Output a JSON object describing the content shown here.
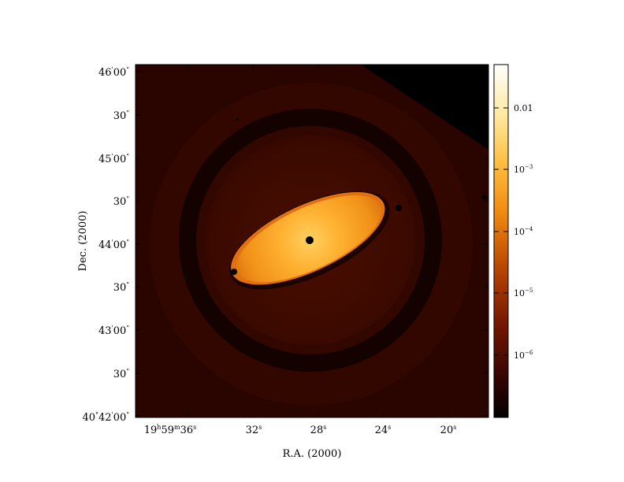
{
  "axes": {
    "xlabel": "R.A. (2000)",
    "ylabel": "Dec. (2000)",
    "x_ticks": [
      {
        "main": "19",
        "sup1": "h",
        "mid": "59",
        "sup2": "m",
        "last": "36",
        "sup3": "s"
      },
      {
        "main": "32",
        "sup1": "s"
      },
      {
        "main": "28",
        "sup1": "s"
      },
      {
        "main": "24",
        "sup1": "s"
      },
      {
        "main": "20",
        "sup1": "s"
      }
    ],
    "y_ticks": [
      {
        "main": "46",
        "sup1": "'",
        "mid": "00",
        "sup2": "\""
      },
      {
        "main": "30",
        "sup1": "\""
      },
      {
        "main": "45",
        "sup1": "'",
        "mid": "00",
        "sup2": "\""
      },
      {
        "main": "30",
        "sup1": "\""
      },
      {
        "main": "44",
        "sup1": "'",
        "mid": "00",
        "sup2": "\""
      },
      {
        "main": "30",
        "sup1": "\""
      },
      {
        "main": "43",
        "sup1": "'",
        "mid": "00",
        "sup2": "\""
      },
      {
        "main": "30",
        "sup1": "\""
      },
      {
        "main": "40",
        "sup1": "°",
        "mid": "42",
        "sup2": "'",
        "last": "00",
        "sup3": "\""
      }
    ]
  },
  "colorbar": {
    "scale": "log",
    "labels": [
      {
        "base": "0.01",
        "exp": ""
      },
      {
        "base": "10",
        "exp": "−3"
      },
      {
        "base": "10",
        "exp": "−4"
      },
      {
        "base": "10",
        "exp": "−5"
      },
      {
        "base": "10",
        "exp": "−6"
      }
    ]
  },
  "colormap": [
    "#000000",
    "#3a0500",
    "#7a1800",
    "#c04a00",
    "#f08a10",
    "#ffc850",
    "#fff0b0",
    "#ffffff"
  ]
}
